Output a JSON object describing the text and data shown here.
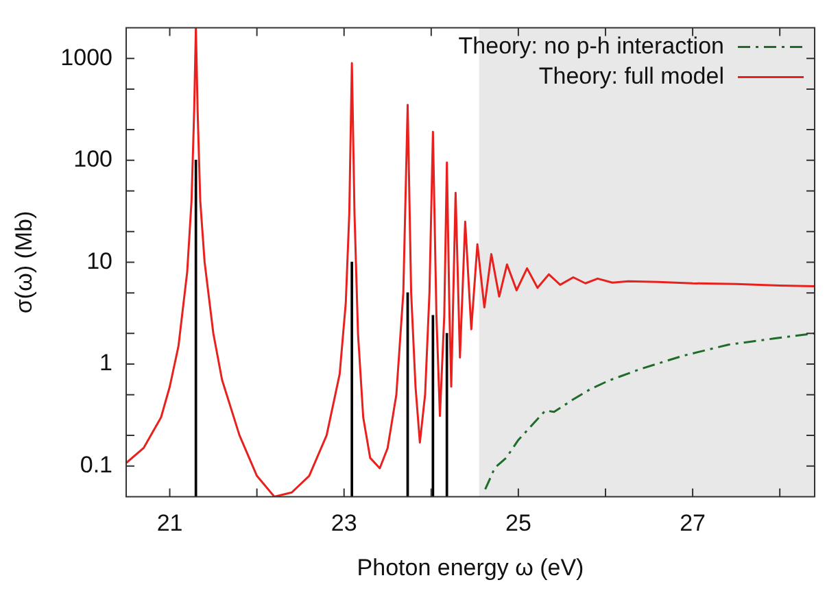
{
  "chart_data": {
    "type": "line",
    "xlabel": "Photon energy ω (eV)",
    "ylabel": "σ(ω) (Mb)",
    "log": "y",
    "xlim": [
      20.5,
      28.4
    ],
    "ylim": [
      0.05,
      2000
    ],
    "xticks": [
      21,
      {
        "value": 22,
        "label": null
      },
      23,
      {
        "value": 24,
        "label": null
      },
      25,
      {
        "value": 26,
        "label": null
      },
      27,
      {
        "value": 28,
        "label": null
      }
    ],
    "yticks": [
      0.1,
      {
        "value": 0.2,
        "label": null
      },
      {
        "value": 0.5,
        "label": null
      },
      1,
      {
        "value": 2,
        "label": null
      },
      {
        "value": 5,
        "label": null
      },
      10,
      {
        "value": 20,
        "label": null
      },
      {
        "value": 50,
        "label": null
      },
      100,
      {
        "value": 200,
        "label": null
      },
      {
        "value": 500,
        "label": null
      },
      1000
    ],
    "grid": false,
    "legend": "top right",
    "bands": [
      {
        "axis": "x",
        "from": 24.55,
        "to": 28.4,
        "color": "#e8e8e8"
      }
    ],
    "series": [
      {
        "name": "Theory: no p-h interaction",
        "color": "#1e6b2a",
        "line_style": "dashdot",
        "x": [
          24.62,
          24.73,
          24.86,
          25.0,
          25.31,
          25.41,
          25.63,
          25.83,
          26.04,
          26.41,
          26.88,
          27.41,
          27.93,
          28.4
        ],
        "values": [
          0.059,
          0.096,
          0.12,
          0.18,
          0.35,
          0.34,
          0.45,
          0.57,
          0.69,
          0.9,
          1.2,
          1.55,
          1.78,
          2.0
        ]
      },
      {
        "name": "Theory: full model",
        "color": "#e8211e",
        "line_style": "solid",
        "x": [
          20.5,
          20.7,
          20.9,
          21.0,
          21.1,
          21.2,
          21.25,
          21.28,
          21.3,
          21.32,
          21.35,
          21.4,
          21.5,
          21.6,
          21.8,
          22.0,
          22.2,
          22.4,
          22.6,
          22.8,
          22.95,
          23.02,
          23.06,
          23.09,
          23.12,
          23.16,
          23.22,
          23.3,
          23.41,
          23.5,
          23.6,
          23.68,
          23.73,
          23.77,
          23.82,
          23.87,
          23.93,
          23.98,
          24.02,
          24.06,
          24.1,
          24.15,
          24.18,
          24.21,
          24.23,
          24.28,
          24.33,
          24.39,
          24.46,
          24.53,
          24.61,
          24.69,
          24.78,
          24.87,
          24.98,
          25.1,
          25.22,
          25.35,
          25.48,
          25.63,
          25.77,
          25.91,
          26.08,
          26.26,
          26.6,
          27.0,
          27.5,
          28.0,
          28.4
        ],
        "values": [
          0.107,
          0.15,
          0.3,
          0.6,
          1.5,
          8,
          40,
          300,
          2000,
          300,
          40,
          10,
          2,
          0.7,
          0.2,
          0.08,
          0.05,
          0.055,
          0.08,
          0.2,
          0.8,
          4,
          30,
          900,
          30,
          2,
          0.3,
          0.12,
          0.095,
          0.15,
          0.5,
          5,
          350,
          5,
          0.6,
          0.17,
          0.5,
          5,
          190,
          3,
          0.31,
          3,
          95,
          3,
          0.6,
          48,
          1.16,
          25,
          2.2,
          15,
          3.6,
          12,
          4.6,
          9.5,
          5.3,
          8.7,
          5.6,
          7.6,
          6.0,
          7.1,
          6.2,
          6.9,
          6.3,
          6.5,
          6.4,
          6.2,
          6.1,
          5.9,
          5.8
        ]
      },
      {
        "type": "bar",
        "color": "#000000",
        "x": [
          21.3,
          23.09,
          23.73,
          24.02,
          24.18
        ],
        "values": [
          100,
          10,
          5,
          3,
          2
        ]
      }
    ]
  }
}
